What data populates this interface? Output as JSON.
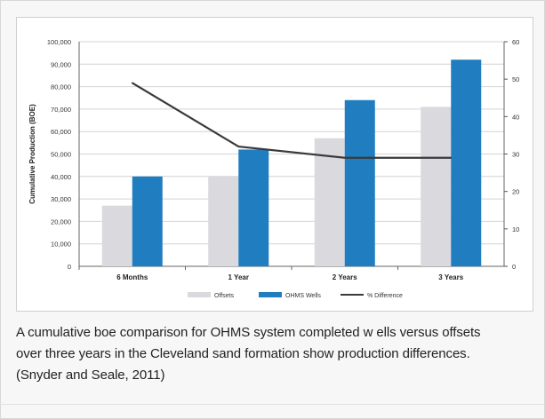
{
  "chart_data": {
    "type": "bar",
    "categories": [
      "6 Months",
      "1 Year",
      "2 Years",
      "3 Years"
    ],
    "series": [
      {
        "name": "Offsets",
        "kind": "bar",
        "axis": "left",
        "color": "#d9d9de",
        "values": [
          27000,
          40000,
          57000,
          71000
        ]
      },
      {
        "name": "OHMS Wells",
        "kind": "bar",
        "axis": "left",
        "color": "#1f7dc0",
        "values": [
          40000,
          52000,
          74000,
          92000
        ]
      },
      {
        "name": "% Difference",
        "kind": "line",
        "axis": "right",
        "color": "#3a3a3a",
        "values": [
          49,
          32,
          29,
          29
        ]
      }
    ],
    "ylabel": "Cumulative Production (BOE)",
    "ylim": [
      0,
      100000
    ],
    "yticks": [
      "0",
      "10,000",
      "20,000",
      "30,000",
      "40,000",
      "50,000",
      "60,000",
      "70,000",
      "80,000",
      "90,000",
      "100,000"
    ],
    "y2lim": [
      0,
      60
    ],
    "y2ticks": [
      "0",
      "10",
      "20",
      "30",
      "40",
      "50",
      "60"
    ],
    "grid": true,
    "legend_position": "bottom"
  },
  "caption": {
    "line1": "A cumulative boe comparison for OHMS system completed w ells versus offsets",
    "line2": "over three years in the Cleveland sand formation show production differences.",
    "line3": "(Snyder and Seale, 2011)"
  }
}
